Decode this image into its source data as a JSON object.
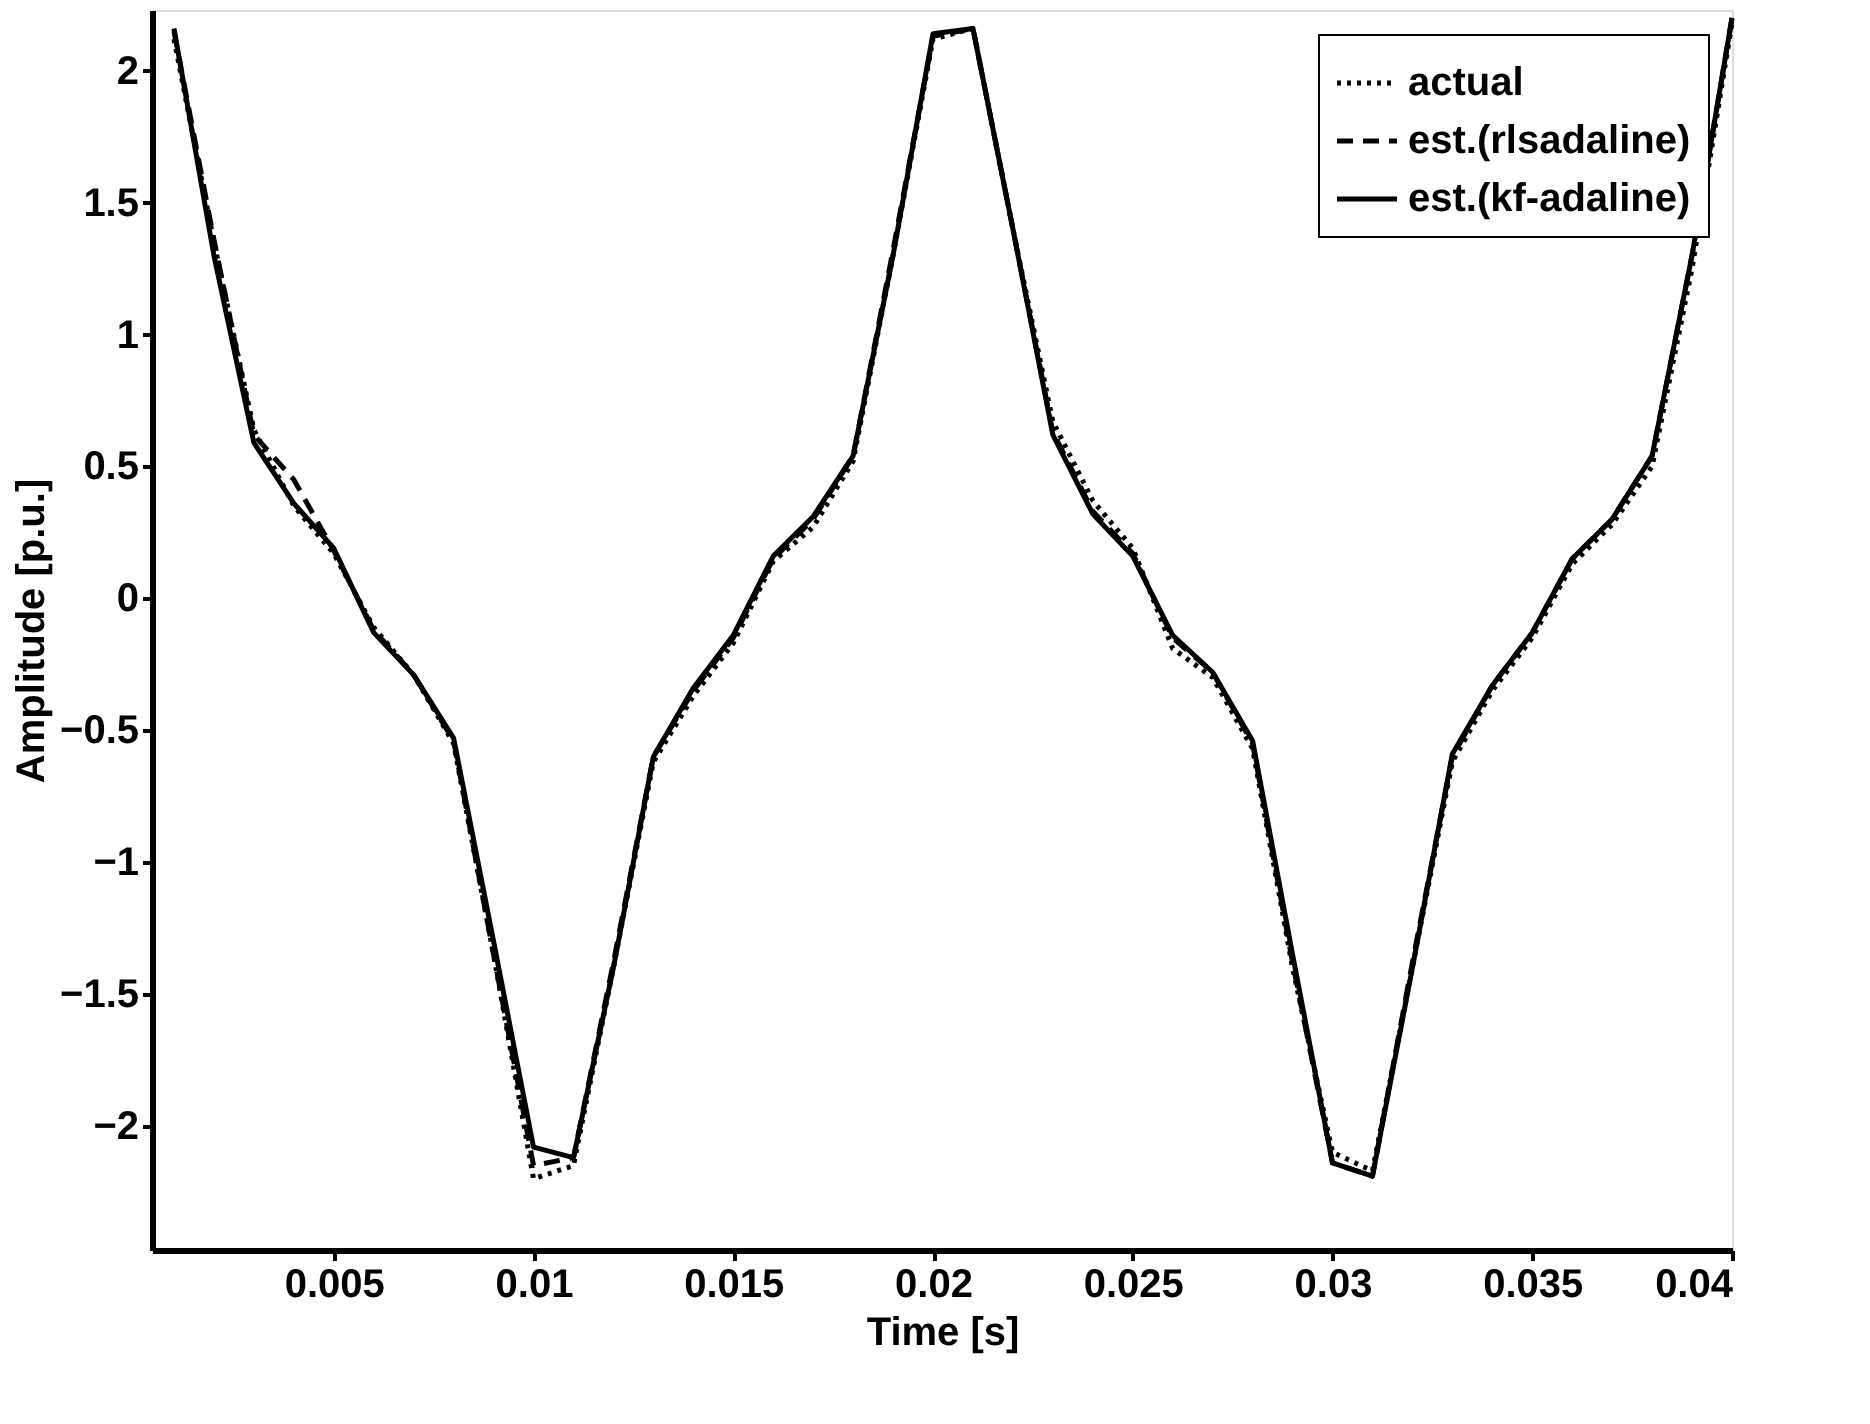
{
  "chart_data": {
    "type": "line",
    "xlabel": "Time [s]",
    "ylabel": "Amplitude [p.u.]",
    "x": [
      0.001,
      0.002,
      0.003,
      0.004,
      0.005,
      0.006,
      0.007,
      0.008,
      0.009,
      0.01,
      0.011,
      0.012,
      0.013,
      0.014,
      0.015,
      0.016,
      0.017,
      0.018,
      0.019,
      0.02,
      0.021,
      0.022,
      0.023,
      0.024,
      0.025,
      0.026,
      0.027,
      0.028,
      0.029,
      0.03,
      0.031,
      0.032,
      0.033,
      0.034,
      0.035,
      0.036,
      0.037,
      0.038,
      0.039,
      0.04
    ],
    "series": [
      {
        "name": "actual",
        "color": "#000000",
        "line_style": "dotted",
        "values": [
          2.12,
          1.35,
          0.64,
          0.35,
          0.17,
          -0.11,
          -0.29,
          -0.55,
          -1.35,
          -2.2,
          -2.15,
          -1.4,
          -0.62,
          -0.37,
          -0.17,
          0.14,
          0.27,
          0.52,
          1.3,
          2.12,
          2.16,
          1.4,
          0.67,
          0.37,
          0.19,
          -0.19,
          -0.3,
          -0.57,
          -1.4,
          -2.1,
          -2.17,
          -1.4,
          -0.62,
          -0.35,
          -0.15,
          0.13,
          0.28,
          0.5,
          1.25,
          2.18
        ]
      },
      {
        "name": "est.(rlsadaline)",
        "color": "#000000",
        "line_style": "dashed",
        "values": [
          2.15,
          1.36,
          0.62,
          0.45,
          0.18,
          -0.12,
          -0.29,
          -0.54,
          -1.35,
          -2.15,
          -2.12,
          -1.38,
          -0.6,
          -0.35,
          -0.15,
          0.15,
          0.3,
          0.54,
          1.32,
          2.13,
          2.16,
          1.4,
          0.63,
          0.33,
          0.17,
          -0.15,
          -0.28,
          -0.55,
          -1.38,
          -2.14,
          -2.19,
          -1.38,
          -0.6,
          -0.33,
          -0.13,
          0.15,
          0.3,
          0.54,
          1.3,
          2.2
        ]
      },
      {
        "name": "est.(kf-adaline)",
        "color": "#000000",
        "line_style": "solid",
        "values": [
          2.16,
          1.3,
          0.59,
          0.36,
          0.19,
          -0.13,
          -0.29,
          -0.53,
          -1.3,
          -2.08,
          -2.12,
          -1.4,
          -0.6,
          -0.34,
          -0.14,
          0.16,
          0.31,
          0.54,
          1.3,
          2.14,
          2.16,
          1.4,
          0.62,
          0.32,
          0.16,
          -0.14,
          -0.28,
          -0.54,
          -1.35,
          -2.14,
          -2.19,
          -1.4,
          -0.59,
          -0.33,
          -0.13,
          0.15,
          0.3,
          0.54,
          1.3,
          2.2
        ]
      }
    ],
    "xlim": [
      0.00045,
      0.04
    ],
    "ylim": [
      -2.47,
      2.23
    ],
    "xticks": [
      0.005,
      0.01,
      0.015,
      0.02,
      0.025,
      0.03,
      0.035,
      0.04
    ],
    "yticks": [
      -2,
      -1.5,
      -1,
      -0.5,
      0,
      0.5,
      1,
      1.5,
      2
    ],
    "grid": false,
    "legend": "top right",
    "marker": "none"
  }
}
